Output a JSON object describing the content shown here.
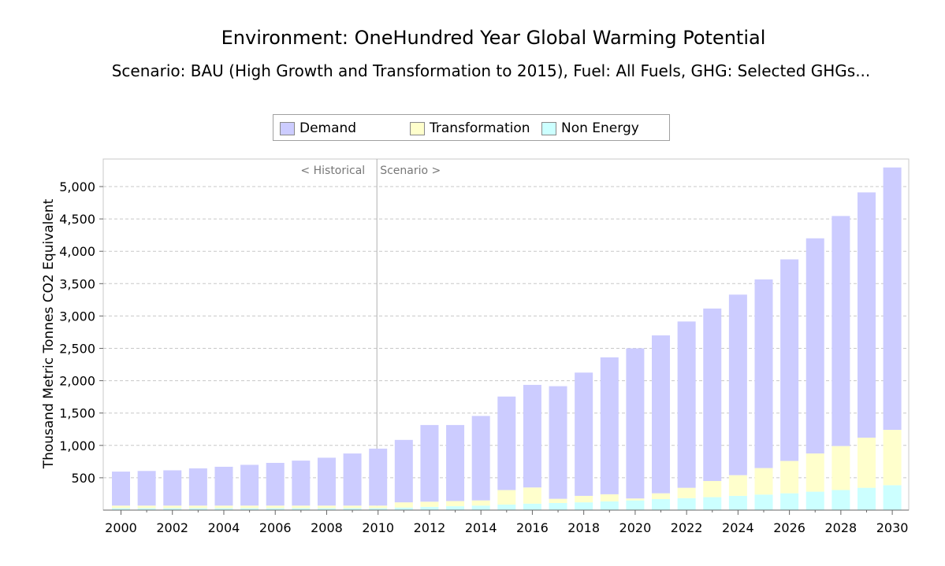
{
  "chart_data": {
    "type": "bar",
    "stacked": true,
    "title": "Environment: OneHundred Year Global Warming Potential",
    "subtitle": "Scenario: BAU (High Growth and Transformation to 2015), Fuel: All Fuels, GHG: Selected GHGs...",
    "ylabel": "Thousand Metric Tonnes CO2 Equivalent",
    "xlabel": "",
    "ylim": [
      0,
      5400
    ],
    "yticks": [
      500,
      1000,
      1500,
      2000,
      2500,
      3000,
      3500,
      4000,
      4500,
      5000
    ],
    "ytick_labels": [
      "500",
      "1,000",
      "1,500",
      "2,000",
      "2,500",
      "3,000",
      "3,500",
      "4,000",
      "4,500",
      "5,000"
    ],
    "xtick_labels": [
      "2000",
      "2002",
      "2004",
      "2006",
      "2008",
      "2010",
      "2012",
      "2014",
      "2016",
      "2018",
      "2020",
      "2022",
      "2024",
      "2026",
      "2028",
      "2030"
    ],
    "grid": true,
    "legend_position": "top",
    "categories": [
      "2000",
      "2001",
      "2002",
      "2003",
      "2004",
      "2005",
      "2006",
      "2007",
      "2008",
      "2009",
      "2010",
      "2011",
      "2012",
      "2013",
      "2014",
      "2015",
      "2016",
      "2017",
      "2018",
      "2019",
      "2020",
      "2021",
      "2022",
      "2023",
      "2024",
      "2025",
      "2026",
      "2027",
      "2028",
      "2029",
      "2030"
    ],
    "series": [
      {
        "name": "Non Energy",
        "color": "#ccffff",
        "values": [
          30,
          30,
          30,
          30,
          30,
          30,
          30,
          30,
          30,
          30,
          30,
          40,
          50,
          60,
          70,
          85,
          100,
          110,
          120,
          135,
          150,
          170,
          185,
          200,
          220,
          240,
          260,
          285,
          310,
          345,
          385
        ]
      },
      {
        "name": "Transformation",
        "color": "#ffffcc",
        "values": [
          40,
          40,
          40,
          40,
          40,
          40,
          40,
          40,
          40,
          40,
          40,
          80,
          80,
          80,
          80,
          225,
          250,
          65,
          100,
          110,
          30,
          90,
          160,
          250,
          320,
          410,
          500,
          590,
          680,
          775,
          855
        ]
      },
      {
        "name": "Demand",
        "color": "#ccccff",
        "values": [
          525,
          535,
          545,
          575,
          600,
          630,
          660,
          695,
          740,
          805,
          880,
          965,
          1185,
          1175,
          1305,
          1445,
          1585,
          1740,
          1905,
          2115,
          2320,
          2440,
          2570,
          2665,
          2790,
          2915,
          3115,
          3325,
          3555,
          3790,
          4055
        ]
      }
    ],
    "annotations": {
      "historical": "< Historical",
      "scenario": "Scenario >",
      "divider_year": "2010"
    }
  },
  "legend": [
    {
      "label": "Demand",
      "color": "#ccccff"
    },
    {
      "label": "Transformation",
      "color": "#ffffcc"
    },
    {
      "label": "Non Energy",
      "color": "#ccffff"
    }
  ]
}
